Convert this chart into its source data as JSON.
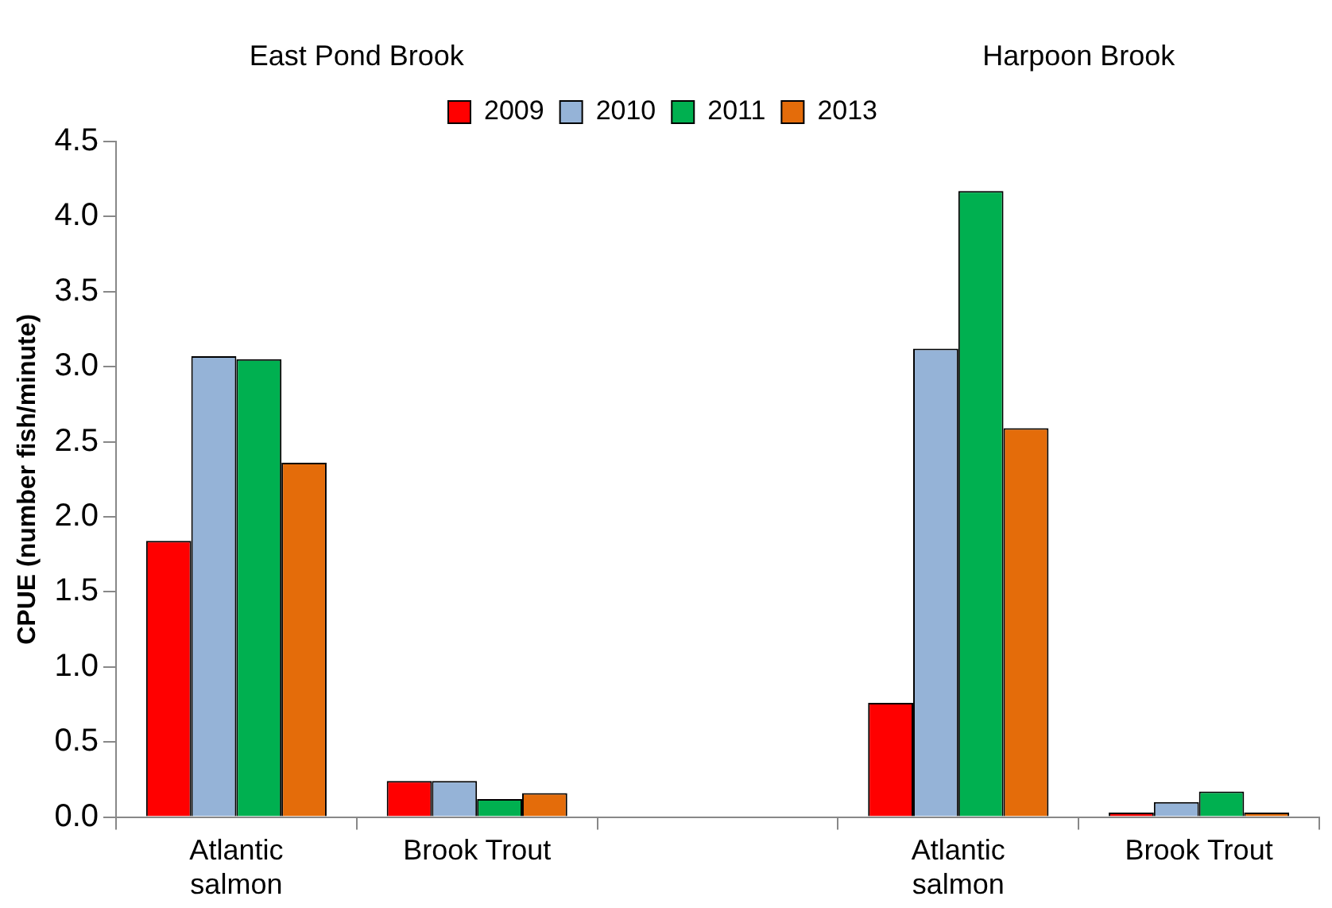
{
  "chart_data": {
    "type": "bar",
    "ylabel": "CPUE (number fish/minute)",
    "categories": [
      "Atlantic salmon",
      "Brook Trout",
      null,
      "Atlantic salmon",
      "Brook Trout"
    ],
    "series": [
      {
        "name": "2009",
        "color": "#ff0000",
        "values": [
          1.84,
          0.24,
          null,
          0.76,
          0.03
        ]
      },
      {
        "name": "2010",
        "color": "#95b3d7",
        "values": [
          3.07,
          0.24,
          null,
          3.12,
          0.1
        ]
      },
      {
        "name": "2011",
        "color": "#00b050",
        "values": [
          3.05,
          0.12,
          null,
          4.17,
          0.17
        ]
      },
      {
        "name": "2013",
        "color": "#e46c0a",
        "values": [
          2.36,
          0.16,
          null,
          2.59,
          0.03
        ]
      }
    ],
    "ylim": [
      0,
      4.5
    ],
    "yticks": [
      {
        "value": 0,
        "label": "0.0"
      },
      {
        "value": 0.5,
        "label": "0.5"
      },
      {
        "value": 1,
        "label": "1.0"
      },
      {
        "value": 1.5,
        "label": "1.5"
      },
      {
        "value": 2,
        "label": "2.0"
      },
      {
        "value": 2.5,
        "label": "2.5"
      },
      {
        "value": 3,
        "label": "3.0"
      },
      {
        "value": 3.5,
        "label": "3.5"
      },
      {
        "value": 4,
        "label": "4.0"
      },
      {
        "value": 4.5,
        "label": "4.5"
      }
    ],
    "annotations": [
      "East Pond Brook",
      "Harpoon Brook"
    ],
    "grid": false,
    "legend": "top"
  }
}
